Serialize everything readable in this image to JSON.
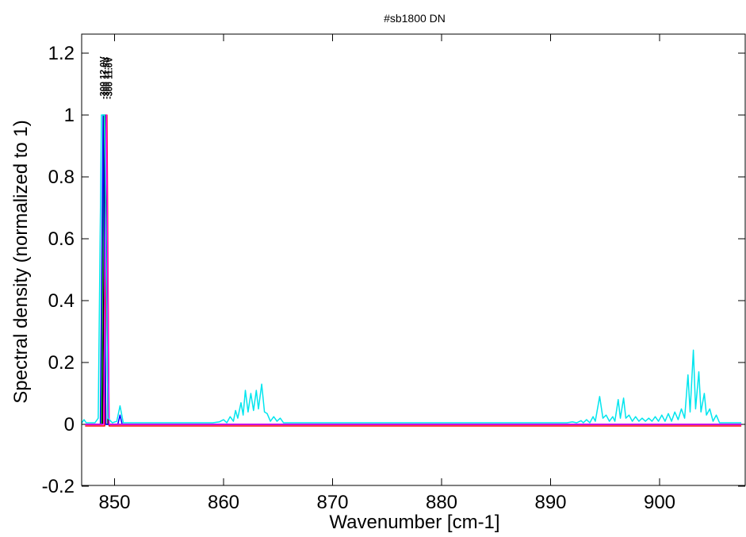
{
  "chart_data": {
    "type": "line",
    "title": "#sb1800 DN",
    "xlabel": "Wavenumber [cm-1]",
    "ylabel": "Spectral density (normalized to 1)",
    "xlim": [
      845.5,
      907.5
    ],
    "ylim": [
      -0.2,
      1.26
    ],
    "xticks": [
      850,
      860,
      870,
      880,
      890,
      900
    ],
    "yticks": [
      -0.2,
      0,
      0.2,
      0.4,
      0.6,
      0.8,
      1,
      1.2
    ],
    "xtick_labels": [
      "850",
      "860",
      "870",
      "880",
      "890",
      "900"
    ],
    "ytick_labels": [
      "-0.2",
      "0",
      "0.2",
      "0.4",
      "0.6",
      "0.8",
      "1",
      "1.2"
    ],
    "grid": false,
    "peak_labels": [
      {
        "text": "-300 12.0V",
        "x": 848.9
      },
      {
        "text": "-300 11.5V",
        "x": 849.2
      },
      {
        "text": "-300 11.0V",
        "x": 849.5
      }
    ],
    "series": [
      {
        "color": "#00c000",
        "points": [
          [
            847.3,
            0
          ],
          [
            848.8,
            0
          ],
          [
            849.0,
            1
          ],
          [
            849.2,
            0
          ],
          [
            907.5,
            0
          ]
        ]
      },
      {
        "color": "#ff0000",
        "points": [
          [
            847.3,
            -0.005
          ],
          [
            849.1,
            -0.005
          ],
          [
            849.3,
            1
          ],
          [
            849.5,
            -0.005
          ],
          [
            907.5,
            -0.005
          ]
        ]
      },
      {
        "color": "#000000",
        "points": [
          [
            847.3,
            0
          ],
          [
            848.9,
            0
          ],
          [
            849.15,
            1
          ],
          [
            849.4,
            0
          ],
          [
            907.5,
            0
          ]
        ]
      },
      {
        "color": "#0000ff",
        "points": [
          [
            847.3,
            0
          ],
          [
            848.7,
            0
          ],
          [
            848.95,
            1
          ],
          [
            849.2,
            0
          ],
          [
            850.3,
            0
          ],
          [
            850.5,
            0.03
          ],
          [
            850.7,
            0
          ],
          [
            907.5,
            0
          ]
        ]
      },
      {
        "color": "#ff00ff",
        "points": [
          [
            847.3,
            0
          ],
          [
            849.0,
            0
          ],
          [
            849.25,
            1
          ],
          [
            849.5,
            0
          ],
          [
            860.0,
            0
          ],
          [
            907.5,
            0
          ]
        ]
      },
      {
        "color": "#00e5ee",
        "points": [
          [
            845.5,
            0.005
          ],
          [
            847.0,
            0.005
          ],
          [
            847.2,
            0.015
          ],
          [
            847.4,
            0.005
          ],
          [
            848.2,
            0.005
          ],
          [
            848.5,
            0.02
          ],
          [
            848.8,
            1
          ],
          [
            849.1,
            1
          ],
          [
            849.4,
            0.02
          ],
          [
            849.8,
            0.005
          ],
          [
            850.2,
            0.01
          ],
          [
            850.5,
            0.06
          ],
          [
            850.8,
            0.005
          ],
          [
            859.0,
            0.005
          ],
          [
            859.6,
            0.008
          ],
          [
            860.0,
            0.015
          ],
          [
            860.3,
            0.005
          ],
          [
            860.6,
            0.025
          ],
          [
            860.9,
            0.01
          ],
          [
            861.1,
            0.045
          ],
          [
            861.3,
            0.02
          ],
          [
            861.6,
            0.07
          ],
          [
            861.8,
            0.03
          ],
          [
            862.0,
            0.11
          ],
          [
            862.25,
            0.04
          ],
          [
            862.5,
            0.1
          ],
          [
            862.75,
            0.045
          ],
          [
            863.0,
            0.11
          ],
          [
            863.2,
            0.05
          ],
          [
            863.5,
            0.13
          ],
          [
            863.75,
            0.04
          ],
          [
            864.0,
            0.035
          ],
          [
            864.3,
            0.01
          ],
          [
            864.6,
            0.025
          ],
          [
            864.9,
            0.01
          ],
          [
            865.2,
            0.02
          ],
          [
            865.5,
            0.005
          ],
          [
            866.0,
            0.005
          ],
          [
            885.0,
            0.005
          ],
          [
            891.5,
            0.005
          ],
          [
            892.0,
            0.008
          ],
          [
            892.4,
            0.005
          ],
          [
            892.8,
            0.012
          ],
          [
            893.0,
            0.005
          ],
          [
            893.3,
            0.015
          ],
          [
            893.6,
            0.005
          ],
          [
            893.9,
            0.025
          ],
          [
            894.1,
            0.01
          ],
          [
            894.5,
            0.09
          ],
          [
            894.8,
            0.02
          ],
          [
            895.1,
            0.03
          ],
          [
            895.4,
            0.01
          ],
          [
            895.7,
            0.025
          ],
          [
            895.9,
            0.01
          ],
          [
            896.2,
            0.08
          ],
          [
            896.4,
            0.02
          ],
          [
            896.7,
            0.085
          ],
          [
            896.9,
            0.02
          ],
          [
            897.2,
            0.03
          ],
          [
            897.5,
            0.01
          ],
          [
            897.8,
            0.025
          ],
          [
            898.1,
            0.01
          ],
          [
            898.4,
            0.02
          ],
          [
            898.7,
            0.01
          ],
          [
            899.0,
            0.02
          ],
          [
            899.3,
            0.01
          ],
          [
            899.6,
            0.025
          ],
          [
            899.9,
            0.01
          ],
          [
            900.2,
            0.03
          ],
          [
            900.5,
            0.01
          ],
          [
            900.8,
            0.035
          ],
          [
            901.1,
            0.01
          ],
          [
            901.4,
            0.04
          ],
          [
            901.7,
            0.015
          ],
          [
            902.0,
            0.05
          ],
          [
            902.3,
            0.02
          ],
          [
            902.6,
            0.16
          ],
          [
            902.8,
            0.04
          ],
          [
            903.1,
            0.24
          ],
          [
            903.3,
            0.05
          ],
          [
            903.6,
            0.17
          ],
          [
            903.8,
            0.04
          ],
          [
            904.1,
            0.1
          ],
          [
            904.3,
            0.03
          ],
          [
            904.6,
            0.05
          ],
          [
            904.9,
            0.01
          ],
          [
            905.2,
            0.03
          ],
          [
            905.5,
            0.005
          ],
          [
            907.5,
            0.005
          ]
        ]
      }
    ]
  }
}
